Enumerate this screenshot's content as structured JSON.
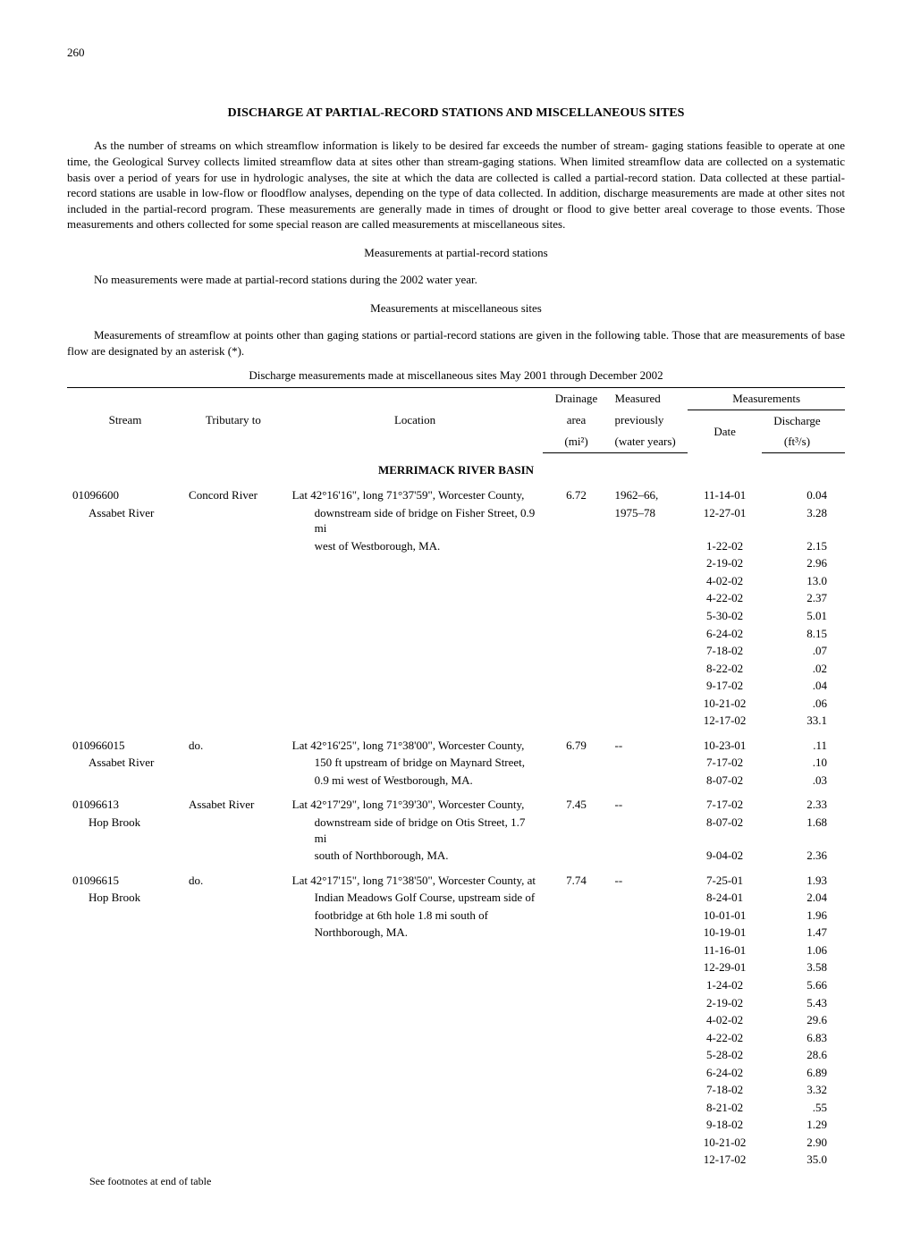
{
  "page_number": "260",
  "title": "DISCHARGE AT PARTIAL-RECORD STATIONS AND MISCELLANEOUS SITES",
  "intro_para": "As the number of streams on which streamflow information is likely to be desired far exceeds the number of stream- gaging stations feasible to operate at one time, the Geological Survey collects limited streamflow data at sites other than stream-gaging stations. When limited streamflow data are collected on a systematic basis over a period of years for use in hydrologic analyses, the site at which the data are collected is called a partial-record station. Data collected at these partial-record stations are usable in low-flow or floodflow analyses, depending on the type of data collected. In addition, discharge measurements are made at other sites not included in the partial-record program. These measurements are generally made in times of drought or flood to give better areal coverage to those events. Those measurements and others collected for some special reason are called measurements at miscellaneous sites.",
  "subhead_partial": "Measurements at partial-record stations",
  "no_meas_para": "No measurements were made at partial-record stations during the 2002 water year.",
  "subhead_misc": "Measurements at miscellaneous sites",
  "misc_para": "Measurements of streamflow at points other than gaging stations or partial-record stations are given in the following table. Those that are measurements of base flow are designated by an asterisk (*).",
  "table_caption": "Discharge measurements made at miscellaneous sites May 2001 through December 2002",
  "headers": {
    "stream": "Stream",
    "tributary": "Tributary to",
    "location": "Location",
    "drainage1": "Drainage",
    "drainage2": "area",
    "drainage3": "(mi²)",
    "measured1": "Measured",
    "measured2": "previously",
    "measured3": "(water years)",
    "measurements": "Measurements",
    "date": "Date",
    "discharge1": "Discharge",
    "discharge2": "(ft³/s)"
  },
  "basin": "MERRIMACK RIVER BASIN",
  "stations": [
    {
      "id": "01096600",
      "name": "Assabet River",
      "tributary": "Concord River",
      "loc1": "Lat 42°16'16\", long 71°37'59\", Worcester County,",
      "loc2": "downstream side of bridge on Fisher Street, 0.9 mi",
      "loc3": "west of Westborough, MA.",
      "drainage": "6.72",
      "prev": "1962–66,",
      "prev2": "1975–78",
      "measurements": [
        {
          "date": "11-14-01",
          "disch": "0.04"
        },
        {
          "date": "12-27-01",
          "disch": "3.28"
        },
        {
          "date": "1-22-02",
          "disch": "2.15"
        },
        {
          "date": "2-19-02",
          "disch": "2.96"
        },
        {
          "date": "4-02-02",
          "disch": "13.0"
        },
        {
          "date": "4-22-02",
          "disch": "2.37"
        },
        {
          "date": "5-30-02",
          "disch": "5.01"
        },
        {
          "date": "6-24-02",
          "disch": "8.15"
        },
        {
          "date": "7-18-02",
          "disch": ".07"
        },
        {
          "date": "8-22-02",
          "disch": ".02"
        },
        {
          "date": "9-17-02",
          "disch": ".04"
        },
        {
          "date": "10-21-02",
          "disch": ".06"
        },
        {
          "date": "12-17-02",
          "disch": "33.1"
        }
      ]
    },
    {
      "id": "010966015",
      "name": "Assabet River",
      "tributary": "do.",
      "loc1": "Lat 42°16'25\", long 71°38'00\", Worcester County,",
      "loc2": "150 ft upstream of bridge on Maynard Street,",
      "loc3": "0.9 mi west of Westborough, MA.",
      "drainage": "6.79",
      "prev": "--",
      "measurements": [
        {
          "date": "10-23-01",
          "disch": ".11"
        },
        {
          "date": "7-17-02",
          "disch": ".10"
        },
        {
          "date": "8-07-02",
          "disch": ".03"
        }
      ]
    },
    {
      "id": "01096613",
      "name": "Hop Brook",
      "tributary": "Assabet River",
      "loc1": "Lat 42°17'29\", long 71°39'30\", Worcester County,",
      "loc2": "downstream side of bridge on Otis Street, 1.7 mi",
      "loc3": "south of Northborough, MA.",
      "drainage": "7.45",
      "prev": "--",
      "measurements": [
        {
          "date": "7-17-02",
          "disch": "2.33"
        },
        {
          "date": "8-07-02",
          "disch": "1.68"
        },
        {
          "date": "9-04-02",
          "disch": "2.36"
        }
      ]
    },
    {
      "id": "01096615",
      "name": "Hop Brook",
      "tributary": "do.",
      "loc1": "Lat 42°17'15\", long 71°38'50\", Worcester County, at",
      "loc2": "Indian Meadows Golf Course, upstream side of",
      "loc3": "footbridge at 6th hole 1.8 mi south of",
      "loc4": "Northborough, MA.",
      "drainage": "7.74",
      "prev": "--",
      "measurements": [
        {
          "date": "7-25-01",
          "disch": "1.93"
        },
        {
          "date": "8-24-01",
          "disch": "2.04"
        },
        {
          "date": "10-01-01",
          "disch": "1.96"
        },
        {
          "date": "10-19-01",
          "disch": "1.47"
        },
        {
          "date": "11-16-01",
          "disch": "1.06"
        },
        {
          "date": "12-29-01",
          "disch": "3.58"
        },
        {
          "date": "1-24-02",
          "disch": "5.66"
        },
        {
          "date": "2-19-02",
          "disch": "5.43"
        },
        {
          "date": "4-02-02",
          "disch": "29.6"
        },
        {
          "date": "4-22-02",
          "disch": "6.83"
        },
        {
          "date": "5-28-02",
          "disch": "28.6"
        },
        {
          "date": "6-24-02",
          "disch": "6.89"
        },
        {
          "date": "7-18-02",
          "disch": "3.32"
        },
        {
          "date": "8-21-02",
          "disch": ".55"
        },
        {
          "date": "9-18-02",
          "disch": "1.29"
        },
        {
          "date": "10-21-02",
          "disch": "2.90"
        },
        {
          "date": "12-17-02",
          "disch": "35.0"
        }
      ]
    }
  ],
  "footnote": "See footnotes at end of table"
}
